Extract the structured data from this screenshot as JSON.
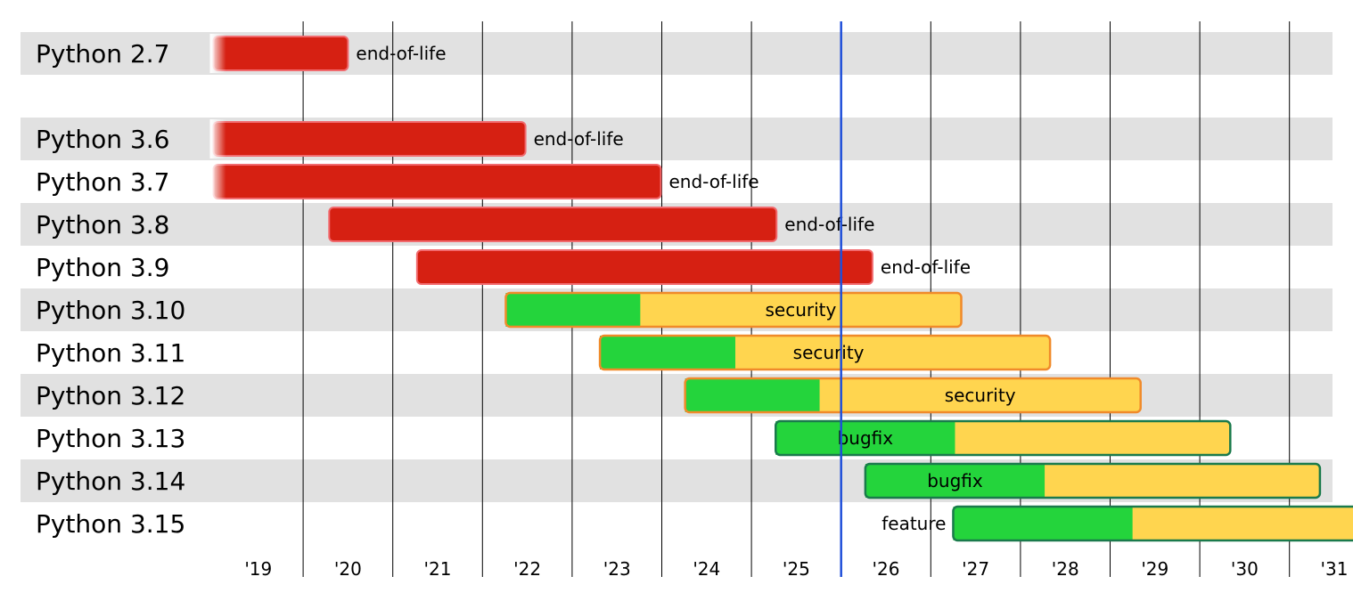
{
  "chart_data": {
    "type": "gantt",
    "x_ticks": [
      "'19",
      "'20",
      "'21",
      "'22",
      "'23",
      "'24",
      "'25",
      "'26",
      "'27",
      "'28",
      "'29",
      "'30",
      "'31"
    ],
    "today": 2025.5,
    "rows": [
      {
        "label": "Python 2.7",
        "start": 2018.5,
        "bugfix_end": null,
        "end": 2020.0,
        "status": "end-of-life",
        "label_pos": "after",
        "fade": true
      },
      {
        "label": "",
        "spacer": true
      },
      {
        "label": "Python 3.6",
        "start": 2018.5,
        "bugfix_end": null,
        "end": 2021.98,
        "status": "end-of-life",
        "label_pos": "after",
        "fade": true
      },
      {
        "label": "Python 3.7",
        "start": 2018.5,
        "bugfix_end": null,
        "end": 2023.49,
        "status": "end-of-life",
        "label_pos": "after",
        "fade": true
      },
      {
        "label": "Python 3.8",
        "start": 2019.79,
        "bugfix_end": null,
        "end": 2024.78,
        "status": "end-of-life",
        "label_pos": "after",
        "fade": false
      },
      {
        "label": "Python 3.9",
        "start": 2020.77,
        "bugfix_end": null,
        "end": 2025.85,
        "status": "end-of-life",
        "label_pos": "after",
        "fade": false
      },
      {
        "label": "Python 3.10",
        "start": 2021.76,
        "bugfix_end": 2023.26,
        "end": 2026.84,
        "status": "security",
        "label_pos": "center_yellow",
        "fade": false
      },
      {
        "label": "Python 3.11",
        "start": 2022.81,
        "bugfix_end": 2024.32,
        "end": 2027.83,
        "status": "security",
        "label_pos": "center",
        "fade": false
      },
      {
        "label": "Python 3.12",
        "start": 2023.76,
        "bugfix_end": 2025.26,
        "end": 2028.84,
        "status": "security",
        "label_pos": "center_yellow",
        "fade": false
      },
      {
        "label": "Python 3.13",
        "start": 2024.77,
        "bugfix_end": 2026.77,
        "end": 2029.84,
        "status": "bugfix",
        "label_pos": "center_green",
        "fade": false
      },
      {
        "label": "Python 3.14",
        "start": 2025.77,
        "bugfix_end": 2027.77,
        "end": 2030.84,
        "status": "bugfix",
        "label_pos": "center_green",
        "fade": false
      },
      {
        "label": "Python 3.15",
        "start": 2026.75,
        "bugfix_end": 2028.75,
        "end": 2031.84,
        "status": "feature",
        "label_pos": "before",
        "fade": false
      }
    ],
    "colors": {
      "eol_fill": "#d62012",
      "eol_stroke": "#f16a6e",
      "bugfix_fill": "#24d43c",
      "security_fill": "#ffd54f",
      "security_stroke": "#f08a2a",
      "bugfix_stroke": "#1a7a4c",
      "today_line": "#1f4fd9",
      "row_band": "#e1e1e1",
      "grid_line": "#000000"
    },
    "grid": true,
    "legend": "none"
  }
}
